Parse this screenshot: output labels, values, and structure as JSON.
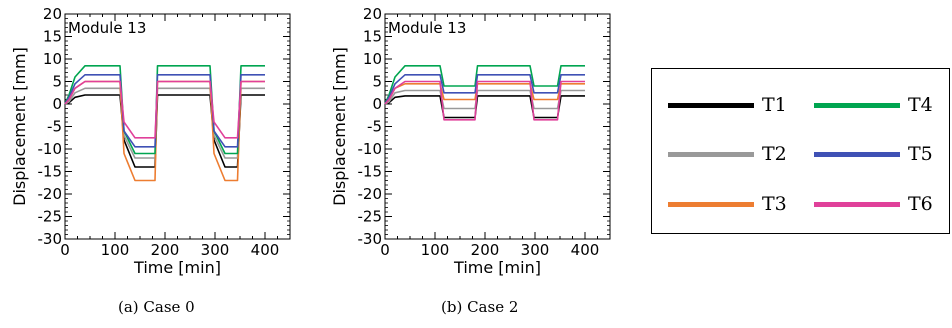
{
  "panels": [
    {
      "caption": "(a)   Case 0",
      "chart_data": {
        "type": "line",
        "annotation": "Module 13",
        "xlabel": "Time [min]",
        "ylabel": "Displacement [mm]",
        "xlim": [
          0,
          450
        ],
        "ylim": [
          -30,
          20
        ],
        "xticks": [
          0,
          100,
          200,
          300,
          400
        ],
        "yticks": [
          20,
          15,
          10,
          5,
          0,
          -5,
          -10,
          -15,
          -20,
          -25,
          -30
        ],
        "grid": false,
        "series": [
          {
            "name": "T1",
            "color": "#000000",
            "x": [
              0,
              8,
              20,
              40,
              110,
              118,
              140,
              180,
              185,
              200,
              290,
              298,
              320,
              345,
              352,
              370,
              400
            ],
            "y": [
              0,
              0.3,
              1.5,
              2,
              2,
              -8,
              -14,
              -14,
              2,
              2,
              2,
              -8,
              -14,
              -14,
              2,
              2,
              2
            ]
          },
          {
            "name": "T2",
            "color": "#999999",
            "x": [
              0,
              8,
              20,
              40,
              110,
              118,
              140,
              180,
              185,
              200,
              290,
              298,
              320,
              345,
              352,
              370,
              400
            ],
            "y": [
              0,
              0.5,
              2.5,
              3.5,
              3.5,
              -7,
              -12,
              -12,
              3.5,
              3.5,
              3.5,
              -7,
              -12,
              -12,
              3.5,
              3.5,
              3.5
            ]
          },
          {
            "name": "T3",
            "color": "#ed7d31",
            "x": [
              0,
              8,
              20,
              40,
              110,
              118,
              140,
              180,
              185,
              200,
              290,
              298,
              320,
              345,
              352,
              370,
              400
            ],
            "y": [
              0,
              1,
              3.5,
              5,
              5,
              -11,
              -17,
              -17,
              5,
              5,
              5,
              -11,
              -17,
              -17,
              5,
              5,
              5
            ]
          },
          {
            "name": "T4",
            "color": "#00a550",
            "x": [
              0,
              8,
              20,
              40,
              110,
              118,
              140,
              180,
              185,
              200,
              290,
              298,
              320,
              345,
              352,
              370,
              400
            ],
            "y": [
              0,
              2,
              6,
              8.5,
              8.5,
              -6,
              -11,
              -11,
              8.5,
              8.5,
              8.5,
              -6,
              -11,
              -11,
              8.5,
              8.5,
              8.5
            ]
          },
          {
            "name": "T5",
            "color": "#3f51b5",
            "x": [
              0,
              8,
              20,
              40,
              110,
              118,
              140,
              180,
              185,
              200,
              290,
              298,
              320,
              345,
              352,
              370,
              400
            ],
            "y": [
              0,
              1.5,
              4.5,
              6.5,
              6.5,
              -6,
              -9.5,
              -9.5,
              6.5,
              6.5,
              6.5,
              -6,
              -9.5,
              -9.5,
              6.5,
              6.5,
              6.5
            ]
          },
          {
            "name": "T6",
            "color": "#e0409a",
            "x": [
              0,
              8,
              20,
              40,
              110,
              118,
              140,
              180,
              185,
              200,
              290,
              298,
              320,
              345,
              352,
              370,
              400
            ],
            "y": [
              0,
              1,
              3.5,
              5,
              5,
              -4,
              -7.5,
              -7.5,
              5,
              5,
              5,
              -4,
              -7.5,
              -7.5,
              5,
              5,
              5
            ]
          }
        ]
      }
    },
    {
      "caption": "(b)   Case 2",
      "chart_data": {
        "type": "line",
        "annotation": "Module 13",
        "xlabel": "Time [min]",
        "ylabel": "Displacement [mm]",
        "xlim": [
          0,
          450
        ],
        "ylim": [
          -30,
          20
        ],
        "xticks": [
          0,
          100,
          200,
          300,
          400
        ],
        "yticks": [
          20,
          15,
          10,
          5,
          0,
          -5,
          -10,
          -15,
          -20,
          -25,
          -30
        ],
        "grid": false,
        "series": [
          {
            "name": "T1",
            "color": "#000000",
            "x": [
              0,
              8,
              20,
              40,
              110,
              118,
              180,
              185,
              200,
              290,
              298,
              345,
              352,
              370,
              400
            ],
            "y": [
              0,
              0.3,
              1.5,
              1.8,
              1.8,
              -3,
              -3,
              1.8,
              1.8,
              1.8,
              -3,
              -3,
              1.8,
              1.8,
              1.8
            ]
          },
          {
            "name": "T2",
            "color": "#999999",
            "x": [
              0,
              8,
              20,
              40,
              110,
              118,
              180,
              185,
              200,
              290,
              298,
              345,
              352,
              370,
              400
            ],
            "y": [
              0,
              0.5,
              2.5,
              3,
              3,
              -1,
              -1,
              3,
              3,
              3,
              -1,
              -1,
              3,
              3,
              3
            ]
          },
          {
            "name": "T3",
            "color": "#ed7d31",
            "x": [
              0,
              8,
              20,
              40,
              110,
              118,
              180,
              185,
              200,
              290,
              298,
              345,
              352,
              370,
              400
            ],
            "y": [
              0,
              1,
              3.5,
              4.5,
              4.5,
              1,
              1,
              4.5,
              4.5,
              4.5,
              1,
              1,
              4.5,
              4.5,
              4.5
            ]
          },
          {
            "name": "T4",
            "color": "#00a550",
            "x": [
              0,
              8,
              20,
              40,
              110,
              118,
              180,
              185,
              200,
              290,
              298,
              345,
              352,
              370,
              400
            ],
            "y": [
              0,
              2,
              6,
              8.5,
              8.5,
              4,
              4,
              8.5,
              8.5,
              8.5,
              4,
              4,
              8.5,
              8.5,
              8.5
            ]
          },
          {
            "name": "T5",
            "color": "#3f51b5",
            "x": [
              0,
              8,
              20,
              40,
              110,
              118,
              180,
              185,
              200,
              290,
              298,
              345,
              352,
              370,
              400
            ],
            "y": [
              0,
              1.5,
              4.5,
              6.5,
              6.5,
              2.5,
              2.5,
              6.5,
              6.5,
              6.5,
              2.5,
              2.5,
              6.5,
              6.5,
              6.5
            ]
          },
          {
            "name": "T6",
            "color": "#e0409a",
            "x": [
              0,
              8,
              20,
              40,
              110,
              118,
              180,
              185,
              200,
              290,
              298,
              345,
              352,
              370,
              400
            ],
            "y": [
              0,
              1,
              3.5,
              5,
              5,
              -3.5,
              -3.5,
              5,
              5,
              5,
              -3.5,
              -3.5,
              5,
              5,
              5
            ]
          }
        ]
      }
    }
  ],
  "legend": {
    "items": [
      {
        "label": "T1",
        "color": "#000000"
      },
      {
        "label": "T4",
        "color": "#00a550"
      },
      {
        "label": "T2",
        "color": "#999999"
      },
      {
        "label": "T5",
        "color": "#3f51b5"
      },
      {
        "label": "T3",
        "color": "#ed7d31"
      },
      {
        "label": "T6",
        "color": "#e0409a"
      }
    ]
  }
}
